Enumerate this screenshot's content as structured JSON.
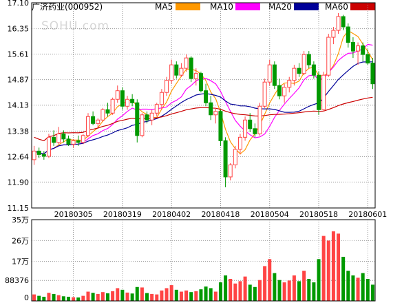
{
  "title": "广济药业(000952)",
  "watermark": "SOHU.com",
  "legend": [
    {
      "name": "MA5",
      "color": "#ff9900"
    },
    {
      "name": "MA10",
      "color": "#ff00ff"
    },
    {
      "name": "MA20",
      "color": "#000099"
    },
    {
      "name": "MA60",
      "color": "#cc0000"
    }
  ],
  "colors": {
    "up": "#ff4444",
    "down": "#009900",
    "grid": "#999999"
  },
  "chart_data": [
    {
      "type": "candlestick",
      "y_ticks": [
        "11.15",
        "11.90",
        "12.64",
        "13.38",
        "14.13",
        "14.87",
        "15.61",
        "16.35",
        "17.10"
      ],
      "ylim": [
        11.15,
        17.1
      ],
      "x_ticks": [
        {
          "label": "20180305",
          "index": 8
        },
        {
          "label": "20180319",
          "index": 18
        },
        {
          "label": "20180402",
          "index": 28
        },
        {
          "label": "20180418",
          "index": 38
        },
        {
          "label": "20180504",
          "index": 48
        },
        {
          "label": "20180518",
          "index": 58
        },
        {
          "label": "20180601",
          "index": 68
        }
      ],
      "ohlc": [
        [
          12.55,
          12.95,
          12.4,
          12.8
        ],
        [
          12.8,
          12.9,
          12.6,
          12.7
        ],
        [
          12.7,
          12.8,
          12.55,
          12.65
        ],
        [
          12.65,
          13.3,
          12.6,
          13.2
        ],
        [
          13.2,
          13.4,
          12.95,
          13.05
        ],
        [
          13.05,
          13.5,
          13.0,
          13.3
        ],
        [
          13.3,
          13.4,
          13.05,
          13.15
        ],
        [
          13.15,
          13.25,
          12.95,
          13.0
        ],
        [
          13.0,
          13.15,
          12.9,
          13.1
        ],
        [
          13.1,
          13.25,
          12.95,
          13.05
        ],
        [
          13.05,
          13.3,
          13.0,
          13.25
        ],
        [
          13.25,
          13.9,
          13.2,
          13.8
        ],
        [
          13.8,
          13.95,
          13.55,
          13.6
        ],
        [
          13.6,
          13.75,
          13.45,
          13.7
        ],
        [
          13.7,
          14.05,
          13.65,
          14.0
        ],
        [
          14.0,
          14.2,
          13.8,
          13.9
        ],
        [
          13.9,
          14.35,
          13.85,
          14.3
        ],
        [
          14.3,
          14.7,
          14.2,
          14.55
        ],
        [
          14.55,
          14.65,
          14.0,
          14.1
        ],
        [
          14.1,
          14.4,
          14.0,
          14.3
        ],
        [
          14.3,
          14.45,
          14.1,
          14.2
        ],
        [
          14.2,
          14.3,
          13.05,
          13.25
        ],
        [
          13.25,
          13.9,
          13.2,
          13.85
        ],
        [
          13.85,
          13.95,
          13.6,
          13.7
        ],
        [
          13.7,
          14.0,
          13.55,
          13.9
        ],
        [
          13.9,
          14.2,
          13.8,
          14.15
        ],
        [
          14.15,
          14.6,
          14.0,
          14.5
        ],
        [
          14.5,
          14.95,
          14.4,
          14.85
        ],
        [
          14.85,
          15.45,
          14.75,
          15.3
        ],
        [
          15.3,
          15.4,
          14.9,
          15.0
        ],
        [
          15.0,
          15.35,
          14.95,
          15.2
        ],
        [
          15.2,
          15.6,
          15.1,
          15.5
        ],
        [
          15.5,
          15.55,
          14.8,
          14.9
        ],
        [
          14.9,
          15.2,
          14.7,
          15.05
        ],
        [
          15.05,
          15.1,
          14.5,
          14.55
        ],
        [
          14.55,
          14.75,
          14.1,
          14.2
        ],
        [
          14.2,
          14.4,
          13.7,
          13.85
        ],
        [
          13.85,
          14.05,
          13.6,
          13.95
        ],
        [
          13.95,
          14.0,
          12.95,
          13.1
        ],
        [
          13.1,
          13.2,
          11.75,
          12.05
        ],
        [
          12.05,
          12.45,
          11.95,
          12.4
        ],
        [
          12.4,
          12.95,
          12.3,
          12.85
        ],
        [
          12.85,
          13.3,
          12.7,
          13.2
        ],
        [
          13.2,
          13.8,
          13.1,
          13.7
        ],
        [
          13.7,
          13.9,
          13.35,
          13.45
        ],
        [
          13.45,
          13.6,
          13.2,
          13.3
        ],
        [
          13.3,
          14.2,
          13.25,
          14.1
        ],
        [
          14.1,
          14.9,
          14.05,
          14.8
        ],
        [
          14.8,
          15.45,
          14.7,
          15.3
        ],
        [
          15.3,
          15.4,
          14.6,
          14.7
        ],
        [
          14.7,
          14.9,
          14.3,
          14.4
        ],
        [
          14.4,
          14.75,
          14.2,
          14.65
        ],
        [
          14.65,
          14.95,
          14.5,
          14.85
        ],
        [
          14.85,
          15.3,
          14.7,
          15.2
        ],
        [
          15.2,
          15.35,
          14.95,
          15.05
        ],
        [
          15.05,
          15.7,
          15.0,
          15.6
        ],
        [
          15.6,
          15.7,
          15.2,
          15.3
        ],
        [
          15.3,
          15.4,
          14.9,
          15.0
        ],
        [
          15.0,
          15.1,
          13.85,
          14.0
        ],
        [
          14.0,
          15.1,
          13.95,
          15.0
        ],
        [
          15.0,
          16.2,
          14.95,
          16.1
        ],
        [
          16.1,
          16.4,
          15.9,
          16.3
        ],
        [
          16.3,
          16.8,
          16.2,
          16.7
        ],
        [
          16.7,
          16.75,
          16.3,
          16.4
        ],
        [
          16.4,
          16.5,
          15.8,
          15.95
        ],
        [
          15.95,
          16.1,
          15.5,
          15.7
        ],
        [
          15.7,
          15.95,
          15.3,
          15.85
        ],
        [
          15.85,
          15.95,
          15.4,
          15.6
        ],
        [
          15.6,
          15.75,
          15.3,
          15.35
        ],
        [
          15.35,
          15.5,
          14.6,
          14.75
        ]
      ]
    },
    {
      "type": "bar",
      "y_ticks": [
        "0",
        "88376",
        "17万",
        "26万",
        "35万"
      ],
      "ylim": [
        0,
        350000
      ],
      "volume": [
        28000,
        22000,
        18000,
        35000,
        30000,
        25000,
        20000,
        18000,
        16000,
        15000,
        22000,
        40000,
        35000,
        30000,
        38000,
        33000,
        42000,
        55000,
        48000,
        36000,
        32000,
        60000,
        58000,
        34000,
        30000,
        28000,
        45000,
        55000,
        68000,
        48000,
        40000,
        45000,
        38000,
        42000,
        50000,
        62000,
        55000,
        40000,
        80000,
        110000,
        95000,
        75000,
        85000,
        105000,
        70000,
        60000,
        90000,
        150000,
        180000,
        120000,
        90000,
        80000,
        88000,
        110000,
        85000,
        130000,
        95000,
        80000,
        180000,
        280000,
        260000,
        300000,
        290000,
        190000,
        130000,
        110000,
        100000,
        120000,
        95000,
        70000
      ]
    }
  ]
}
